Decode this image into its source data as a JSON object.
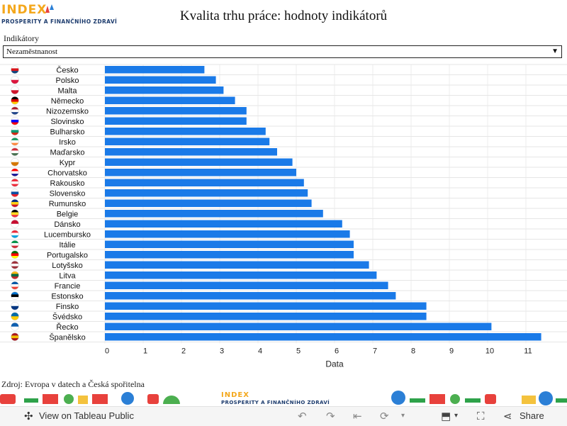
{
  "header": {
    "logo_text": "INDEX",
    "logo_subtitle": "PROSPERITY A FINANČNÍHO ZDRAVÍ",
    "title": "Kvalita trhu práce: hodnoty indikátorů"
  },
  "filter": {
    "label": "Indikátory",
    "selected": "Nezaměstnanost"
  },
  "chart_data": {
    "type": "bar",
    "orientation": "horizontal",
    "categories": [
      "Česko",
      "Polsko",
      "Malta",
      "Německo",
      "Nizozemsko",
      "Slovinsko",
      "Bulharsko",
      "Irsko",
      "Maďarsko",
      "Kypr",
      "Chorvatsko",
      "Rakousko",
      "Slovensko",
      "Rumunsko",
      "Belgie",
      "Dánsko",
      "Lucembursko",
      "Itálie",
      "Portugalsko",
      "Lotyšsko",
      "Litva",
      "Francie",
      "Estonsko",
      "Finsko",
      "Švédsko",
      "Řecko",
      "Španělsko"
    ],
    "values": [
      2.6,
      2.9,
      3.1,
      3.4,
      3.7,
      3.7,
      4.2,
      4.3,
      4.5,
      4.9,
      5.0,
      5.2,
      5.3,
      5.4,
      5.7,
      6.2,
      6.4,
      6.5,
      6.5,
      6.9,
      7.1,
      7.4,
      7.6,
      8.4,
      8.4,
      10.1,
      11.4
    ],
    "xlabel": "Data",
    "xlim": [
      0,
      12
    ],
    "xticks": [
      0,
      1,
      2,
      3,
      4,
      5,
      6,
      7,
      8,
      9,
      10,
      11
    ],
    "color": "#1a7ae8",
    "grid": true,
    "flags": [
      [
        "#ffffff",
        "#d7141a",
        "#11457e"
      ],
      [
        "#ffffff",
        "#dc143c"
      ],
      [
        "#ffffff",
        "#cf142b"
      ],
      [
        "#000000",
        "#dd0000",
        "#ffce00"
      ],
      [
        "#ae1c28",
        "#ffffff",
        "#21468b"
      ],
      [
        "#ffffff",
        "#0000ff",
        "#ff0000"
      ],
      [
        "#ffffff",
        "#00966e",
        "#d62612"
      ],
      [
        "#169b62",
        "#ffffff",
        "#ff883e"
      ],
      [
        "#ce2939",
        "#ffffff",
        "#477050"
      ],
      [
        "#ffffff",
        "#d57800"
      ],
      [
        "#ff0000",
        "#ffffff",
        "#171796"
      ],
      [
        "#ed2939",
        "#ffffff",
        "#ed2939"
      ],
      [
        "#ffffff",
        "#0b4ea2",
        "#ee1c25"
      ],
      [
        "#002b7f",
        "#fcd116",
        "#ce1126"
      ],
      [
        "#000000",
        "#fdda24",
        "#ef3340"
      ],
      [
        "#c60c30",
        "#ffffff"
      ],
      [
        "#ed2939",
        "#ffffff",
        "#00a1de"
      ],
      [
        "#009246",
        "#ffffff",
        "#ce2b37"
      ],
      [
        "#006600",
        "#ff0000",
        "#ffff00"
      ],
      [
        "#9e3039",
        "#ffffff",
        "#9e3039"
      ],
      [
        "#fdb913",
        "#006a44",
        "#c1272d"
      ],
      [
        "#0055a4",
        "#ffffff",
        "#ef4135"
      ],
      [
        "#0072ce",
        "#000000",
        "#ffffff"
      ],
      [
        "#ffffff",
        "#003580"
      ],
      [
        "#006aa7",
        "#fecc00"
      ],
      [
        "#0d5eaf",
        "#ffffff"
      ],
      [
        "#aa151b",
        "#f1bf00",
        "#aa151b"
      ]
    ]
  },
  "source": "Zdroj: Evropa v datech a Česká spořitelna",
  "footer": {
    "logo_text": "INDEX",
    "logo_subtitle": "PROSPERITY A FINANČNÍHO ZDRAVÍ"
  },
  "toolbar": {
    "view_label": "View on Tableau Public",
    "share_label": "Share"
  }
}
